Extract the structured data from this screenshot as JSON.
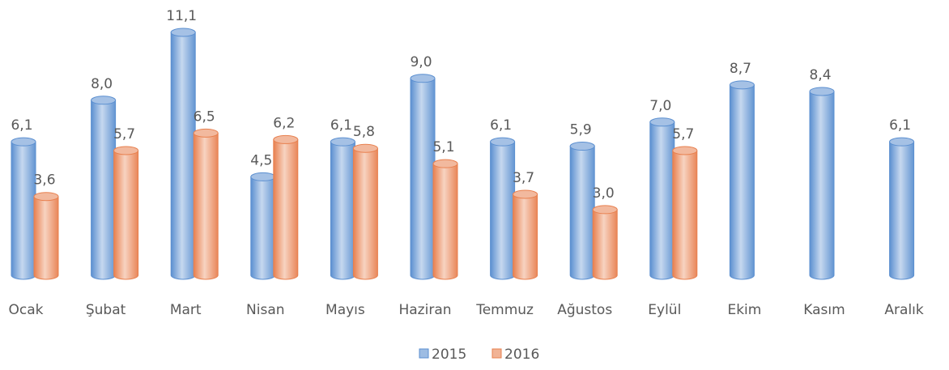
{
  "chart_data": {
    "type": "bar3d",
    "categories": [
      "Ocak",
      "Şubat",
      "Mart",
      "Nisan",
      "Mayıs",
      "Haziran",
      "Temmuz",
      "Ağustos",
      "Eylül",
      "Ekim",
      "Kasım",
      "Aralık"
    ],
    "series": [
      {
        "name": "2015",
        "color": "#5b8fd0",
        "values": [
          6.1,
          8.0,
          11.1,
          4.5,
          6.1,
          9.0,
          6.1,
          5.9,
          7.0,
          8.7,
          8.4,
          6.1
        ],
        "value_labels": [
          "6,1",
          "8,0",
          "11,1",
          "4,5",
          "6,1",
          "9,0",
          "6,1",
          "5,9",
          "7,0",
          "8,7",
          "8,4",
          "6,1"
        ]
      },
      {
        "name": "2016",
        "color": "#e8804f",
        "values": [
          3.6,
          5.7,
          6.5,
          6.2,
          5.8,
          5.1,
          3.7,
          3.0,
          5.7,
          null,
          null,
          null
        ],
        "value_labels": [
          "3,6",
          "5,7",
          "6,5",
          "6,2",
          "5,8",
          "5,1",
          "3,7",
          "3,0",
          "5,7",
          null,
          null,
          null
        ]
      }
    ],
    "legend": "bottom"
  }
}
